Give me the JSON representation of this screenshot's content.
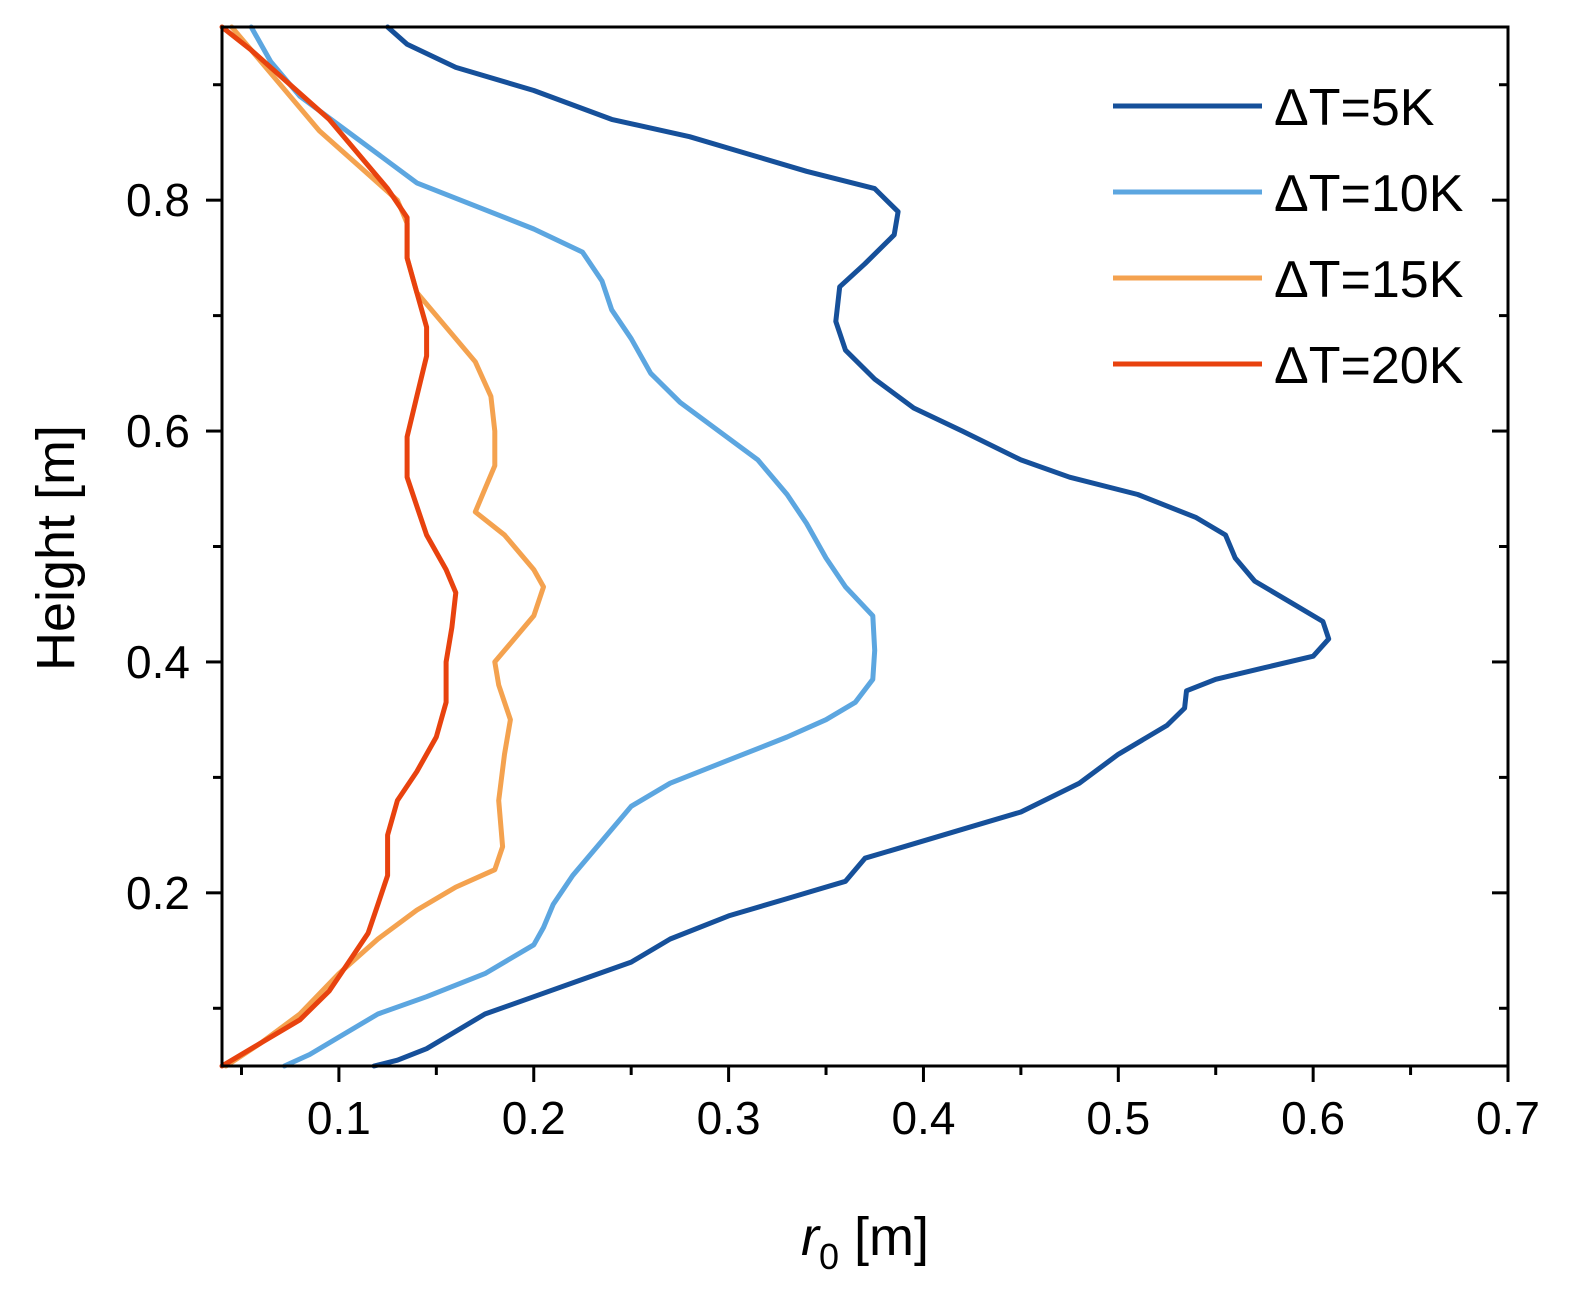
{
  "chart_data": {
    "type": "line",
    "title": "",
    "xlabel": {
      "symbol": "r",
      "subscript": "0",
      "unit": " [m]"
    },
    "ylabel": "Height [m]",
    "xlim": [
      0.04,
      0.7
    ],
    "ylim": [
      0.05,
      0.95
    ],
    "x_ticks": [
      0.1,
      0.2,
      0.3,
      0.4,
      0.5,
      0.6,
      0.7
    ],
    "x_tick_labels": [
      "0.1",
      "0.2",
      "0.3",
      "0.4",
      "0.5",
      "0.6",
      "0.7"
    ],
    "y_ticks": [
      0.2,
      0.4,
      0.6,
      0.8
    ],
    "y_tick_labels": [
      "0.2",
      "0.4",
      "0.6",
      "0.8"
    ],
    "legend_position": "top-right",
    "series": [
      {
        "name": "ΔT=5K",
        "color": "#16509a",
        "points": [
          [
            0.118,
            0.05
          ],
          [
            0.13,
            0.055
          ],
          [
            0.145,
            0.065
          ],
          [
            0.16,
            0.08
          ],
          [
            0.175,
            0.095
          ],
          [
            0.2,
            0.11
          ],
          [
            0.225,
            0.125
          ],
          [
            0.25,
            0.14
          ],
          [
            0.27,
            0.16
          ],
          [
            0.3,
            0.18
          ],
          [
            0.33,
            0.195
          ],
          [
            0.36,
            0.21
          ],
          [
            0.37,
            0.23
          ],
          [
            0.39,
            0.24
          ],
          [
            0.42,
            0.255
          ],
          [
            0.45,
            0.27
          ],
          [
            0.48,
            0.295
          ],
          [
            0.5,
            0.32
          ],
          [
            0.525,
            0.345
          ],
          [
            0.534,
            0.36
          ],
          [
            0.535,
            0.375
          ],
          [
            0.55,
            0.385
          ],
          [
            0.575,
            0.395
          ],
          [
            0.6,
            0.405
          ],
          [
            0.608,
            0.42
          ],
          [
            0.605,
            0.435
          ],
          [
            0.59,
            0.45
          ],
          [
            0.57,
            0.47
          ],
          [
            0.56,
            0.49
          ],
          [
            0.555,
            0.51
          ],
          [
            0.54,
            0.525
          ],
          [
            0.51,
            0.545
          ],
          [
            0.475,
            0.56
          ],
          [
            0.45,
            0.575
          ],
          [
            0.42,
            0.6
          ],
          [
            0.395,
            0.62
          ],
          [
            0.375,
            0.645
          ],
          [
            0.36,
            0.67
          ],
          [
            0.355,
            0.695
          ],
          [
            0.357,
            0.725
          ],
          [
            0.37,
            0.745
          ],
          [
            0.385,
            0.77
          ],
          [
            0.387,
            0.79
          ],
          [
            0.375,
            0.81
          ],
          [
            0.34,
            0.825
          ],
          [
            0.31,
            0.84
          ],
          [
            0.28,
            0.855
          ],
          [
            0.24,
            0.87
          ],
          [
            0.2,
            0.895
          ],
          [
            0.16,
            0.915
          ],
          [
            0.135,
            0.935
          ],
          [
            0.125,
            0.95
          ]
        ]
      },
      {
        "name": "ΔT=10K",
        "color": "#5ca6e0",
        "points": [
          [
            0.072,
            0.05
          ],
          [
            0.085,
            0.06
          ],
          [
            0.1,
            0.075
          ],
          [
            0.12,
            0.095
          ],
          [
            0.145,
            0.11
          ],
          [
            0.175,
            0.13
          ],
          [
            0.2,
            0.155
          ],
          [
            0.205,
            0.17
          ],
          [
            0.21,
            0.19
          ],
          [
            0.22,
            0.215
          ],
          [
            0.235,
            0.245
          ],
          [
            0.25,
            0.275
          ],
          [
            0.27,
            0.295
          ],
          [
            0.3,
            0.315
          ],
          [
            0.33,
            0.335
          ],
          [
            0.35,
            0.35
          ],
          [
            0.365,
            0.365
          ],
          [
            0.374,
            0.385
          ],
          [
            0.375,
            0.41
          ],
          [
            0.374,
            0.44
          ],
          [
            0.36,
            0.465
          ],
          [
            0.35,
            0.49
          ],
          [
            0.34,
            0.52
          ],
          [
            0.33,
            0.545
          ],
          [
            0.315,
            0.575
          ],
          [
            0.295,
            0.6
          ],
          [
            0.275,
            0.625
          ],
          [
            0.26,
            0.65
          ],
          [
            0.25,
            0.68
          ],
          [
            0.24,
            0.705
          ],
          [
            0.235,
            0.73
          ],
          [
            0.225,
            0.755
          ],
          [
            0.2,
            0.775
          ],
          [
            0.17,
            0.795
          ],
          [
            0.14,
            0.815
          ],
          [
            0.12,
            0.84
          ],
          [
            0.1,
            0.865
          ],
          [
            0.08,
            0.89
          ],
          [
            0.065,
            0.92
          ],
          [
            0.055,
            0.95
          ]
        ]
      },
      {
        "name": "ΔT=15K",
        "color": "#f4a24f",
        "points": [
          [
            0.042,
            0.05
          ],
          [
            0.06,
            0.07
          ],
          [
            0.08,
            0.095
          ],
          [
            0.1,
            0.13
          ],
          [
            0.12,
            0.16
          ],
          [
            0.14,
            0.185
          ],
          [
            0.16,
            0.205
          ],
          [
            0.18,
            0.22
          ],
          [
            0.184,
            0.24
          ],
          [
            0.182,
            0.28
          ],
          [
            0.185,
            0.32
          ],
          [
            0.188,
            0.35
          ],
          [
            0.182,
            0.38
          ],
          [
            0.18,
            0.4
          ],
          [
            0.19,
            0.42
          ],
          [
            0.2,
            0.44
          ],
          [
            0.205,
            0.465
          ],
          [
            0.2,
            0.48
          ],
          [
            0.185,
            0.51
          ],
          [
            0.17,
            0.53
          ],
          [
            0.175,
            0.55
          ],
          [
            0.18,
            0.57
          ],
          [
            0.18,
            0.6
          ],
          [
            0.178,
            0.63
          ],
          [
            0.17,
            0.66
          ],
          [
            0.155,
            0.69
          ],
          [
            0.14,
            0.72
          ],
          [
            0.135,
            0.75
          ],
          [
            0.135,
            0.78
          ],
          [
            0.13,
            0.8
          ],
          [
            0.11,
            0.83
          ],
          [
            0.09,
            0.86
          ],
          [
            0.075,
            0.89
          ],
          [
            0.06,
            0.92
          ],
          [
            0.045,
            0.95
          ]
        ]
      },
      {
        "name": "ΔT=20K",
        "color": "#e8420e",
        "points": [
          [
            0.04,
            0.05
          ],
          [
            0.06,
            0.07
          ],
          [
            0.08,
            0.09
          ],
          [
            0.095,
            0.115
          ],
          [
            0.105,
            0.14
          ],
          [
            0.115,
            0.165
          ],
          [
            0.12,
            0.19
          ],
          [
            0.125,
            0.215
          ],
          [
            0.125,
            0.25
          ],
          [
            0.13,
            0.28
          ],
          [
            0.14,
            0.305
          ],
          [
            0.15,
            0.335
          ],
          [
            0.155,
            0.365
          ],
          [
            0.155,
            0.4
          ],
          [
            0.158,
            0.43
          ],
          [
            0.16,
            0.46
          ],
          [
            0.155,
            0.48
          ],
          [
            0.145,
            0.51
          ],
          [
            0.14,
            0.535
          ],
          [
            0.135,
            0.56
          ],
          [
            0.135,
            0.595
          ],
          [
            0.14,
            0.63
          ],
          [
            0.145,
            0.665
          ],
          [
            0.145,
            0.69
          ],
          [
            0.14,
            0.72
          ],
          [
            0.135,
            0.75
          ],
          [
            0.135,
            0.785
          ],
          [
            0.125,
            0.81
          ],
          [
            0.11,
            0.84
          ],
          [
            0.095,
            0.87
          ],
          [
            0.075,
            0.9
          ],
          [
            0.055,
            0.93
          ],
          [
            0.04,
            0.95
          ]
        ]
      }
    ]
  }
}
